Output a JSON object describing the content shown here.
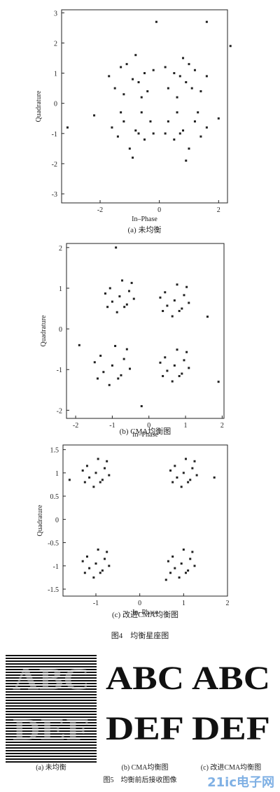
{
  "charts": [
    {
      "type": "scatter",
      "caption": "(a) 未均衡",
      "xlabel": "In–Phase",
      "ylabel": "Quadrature",
      "color": "#222",
      "xlim": [
        -3.3,
        2.3
      ],
      "ylim": [
        -3.3,
        3.1
      ],
      "xticks": [
        -2,
        0,
        2
      ],
      "yticks": [
        -3,
        -2,
        -1,
        0,
        1,
        2,
        3
      ],
      "x": [
        0.5,
        0.9,
        1.2,
        0.3,
        0.8,
        1.4,
        0.6,
        1.0,
        0.2,
        1.6,
        0.7,
        1.1,
        -0.5,
        -0.9,
        -1.3,
        -0.4,
        -0.8,
        -1.5,
        -0.6,
        -1.1,
        -0.2,
        -1.7,
        -0.7,
        -1.2,
        -0.8,
        -1.2,
        -0.5,
        -1.4,
        -0.3,
        -1.0,
        -1.6,
        -0.6,
        -0.9,
        -1.3,
        -0.7,
        -0.2,
        0.8,
        1.2,
        0.5,
        1.4,
        0.3,
        1.0,
        1.6,
        0.6,
        0.9,
        1.3,
        0.7,
        0.2,
        -3.1,
        1.6,
        2.4,
        -0.1,
        -2.2,
        2.0
      ],
      "values": [
        1.0,
        0.7,
        1.1,
        0.5,
        1.5,
        0.4,
        0.2,
        1.3,
        1.2,
        0.9,
        0.9,
        0.5,
        1.0,
        0.8,
        1.2,
        0.4,
        1.6,
        0.5,
        0.2,
        1.3,
        1.1,
        0.9,
        0.7,
        0.3,
        -0.9,
        -0.6,
        -1.2,
        -1.1,
        -0.6,
        -1.5,
        -0.8,
        -0.3,
        -1.8,
        -0.3,
        -1.0,
        -1.0,
        -0.9,
        -0.6,
        -1.2,
        -1.1,
        -0.6,
        -1.5,
        -0.8,
        -0.3,
        -1.9,
        -0.3,
        -1.0,
        -1.0,
        -0.8,
        2.7,
        1.9,
        2.7,
        -0.4,
        -0.5
      ]
    },
    {
      "type": "scatter",
      "caption": "(b) CMA均衡图",
      "xlabel": "In–Phase",
      "ylabel": "Quadrature",
      "color": "#222",
      "xlim": [
        -2.25,
        2.05
      ],
      "ylim": [
        -2.2,
        2.1
      ],
      "xticks": [
        -2,
        -1,
        0,
        1,
        2
      ],
      "yticks": [
        -2,
        -1,
        0,
        1,
        2
      ],
      "x": [
        0.7,
        0.96,
        0.44,
        0.83,
        0.5,
        1.09,
        0.31,
        0.77,
        0.64,
        1.03,
        0.38,
        0.9,
        -0.8,
        -0.54,
        -1.06,
        -0.67,
        -1,
        -0.41,
        -1.19,
        -0.73,
        -0.87,
        -0.47,
        -1.13,
        -0.6,
        -1,
        -0.68,
        -1.32,
        -0.84,
        -1.24,
        -0.52,
        -1.48,
        -0.92,
        -1.08,
        -0.6,
        -1.4,
        -0.76,
        0.7,
        0.96,
        0.44,
        0.83,
        0.5,
        1.09,
        0.31,
        0.77,
        0.64,
        1.03,
        0.38,
        0.9,
        -0.9,
        1.9,
        -1.9,
        1.6,
        -0.2
      ],
      "values": [
        0.7,
        0.83,
        0.9,
        0.44,
        0.57,
        0.64,
        0.77,
        1.09,
        0.31,
        1.03,
        0.44,
        0.5,
        0.8,
        0.93,
        1,
        0.54,
        0.67,
        0.74,
        0.87,
        1.19,
        0.41,
        1.13,
        0.54,
        0.6,
        -0.9,
        -0.74,
        -0.66,
        -1.22,
        -1.06,
        -0.98,
        -0.82,
        -0.42,
        -1.38,
        -0.5,
        -1.22,
        -1.14,
        -0.9,
        -0.77,
        -0.7,
        -1.16,
        -1.03,
        -0.96,
        -0.83,
        -0.51,
        -1.29,
        -0.57,
        -1.16,
        -1.1,
        2,
        -1.3,
        -0.4,
        0.3,
        -1.9
      ]
    },
    {
      "type": "scatter",
      "caption": "(c) 改进CMA均衡图",
      "xlabel": "In–Phase",
      "ylabel": "Quadrature",
      "color": "#222",
      "xlim": [
        -1.75,
        2.0
      ],
      "ylim": [
        -1.65,
        1.6
      ],
      "xticks": [
        -1,
        0,
        1,
        2
      ],
      "yticks": [
        -1.5,
        -1.0,
        -0.5,
        0,
        0.5,
        1.0,
        1.5
      ],
      "x": [
        1,
        1.2,
        0.8,
        1.1,
        0.85,
        1.3,
        0.7,
        1.05,
        0.95,
        1.25,
        0.75,
        1.15,
        -1,
        -0.8,
        -1.2,
        -0.9,
        -1.15,
        -0.7,
        -1.3,
        -0.95,
        -1.05,
        -0.75,
        -1.25,
        -0.85,
        -1,
        -0.8,
        -1.2,
        -0.9,
        -1.15,
        -0.7,
        -1.3,
        -0.95,
        -1.05,
        -0.75,
        -1.25,
        -0.85,
        0.95,
        1.15,
        0.75,
        1.05,
        0.8,
        1.25,
        0.65,
        1,
        0.9,
        1.2,
        0.7,
        1.1,
        1.7,
        -1.6,
        0.6
      ],
      "values": [
        1,
        1.1,
        1.15,
        0.8,
        0.9,
        0.95,
        1.05,
        1.3,
        0.7,
        1.25,
        0.8,
        0.85,
        1,
        1.1,
        1.15,
        0.8,
        0.9,
        0.95,
        1.05,
        1.3,
        0.7,
        1.25,
        0.8,
        0.85,
        -0.95,
        -0.85,
        -0.8,
        -1.15,
        -1.05,
        -1,
        -0.9,
        -0.65,
        -1.25,
        -0.7,
        -1.15,
        -1.1,
        -0.95,
        -0.85,
        -0.8,
        -1.15,
        -1.05,
        -1,
        -0.9,
        -0.65,
        -1.25,
        -0.7,
        -1.15,
        -1.1,
        0.9,
        0.85,
        -1.3
      ]
    }
  ],
  "figure4_caption": "图4　均衡星座图",
  "images": [
    {
      "lines": [
        "ABC",
        "DEF"
      ],
      "caption": "(a) 未均衡"
    },
    {
      "lines": [
        "ABC",
        "DEF"
      ],
      "caption": "(b) CMA均衡图"
    },
    {
      "lines": [
        "ABC",
        "DEF"
      ],
      "caption": "(c) 改进CMA均衡图"
    }
  ],
  "figure5_caption": "图5　均衡前后接收图像",
  "watermark": "21ic电子网"
}
